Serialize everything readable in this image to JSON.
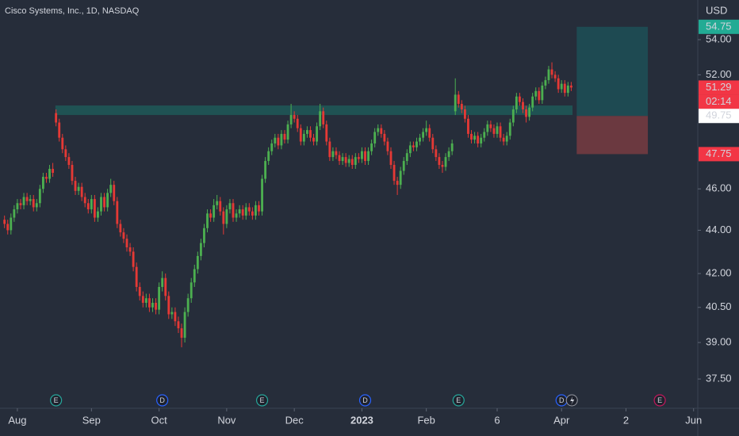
{
  "chart_data": {
    "type": "candlestick",
    "title": "Cisco Systems, Inc., 1D, NASDAQ",
    "currency": "USD",
    "log_scale": true,
    "up_color": "#4caf50",
    "down_color": "#e53935",
    "background": "#262d3a",
    "ylim": [
      36.34,
      56.35
    ],
    "yticks": [
      {
        "value": 54,
        "label": "54.00"
      },
      {
        "value": 52,
        "label": "52.00"
      },
      {
        "value": 46,
        "label": "46.00"
      },
      {
        "value": 44,
        "label": "44.00"
      },
      {
        "value": 42,
        "label": "42.00"
      },
      {
        "value": 40.5,
        "label": "40.50"
      },
      {
        "value": 39,
        "label": "39.00"
      },
      {
        "value": 37.5,
        "label": "37.50"
      }
    ],
    "xlim": [
      -1.4,
      215.3
    ],
    "xticks": [
      {
        "value": 4,
        "label": "Aug"
      },
      {
        "value": 27,
        "label": "Sep"
      },
      {
        "value": 48,
        "label": "Oct"
      },
      {
        "value": 69,
        "label": "Nov"
      },
      {
        "value": 90,
        "label": "Dec"
      },
      {
        "value": 111,
        "label": "2023"
      },
      {
        "value": 131,
        "label": "Feb"
      },
      {
        "value": 153,
        "label": "6"
      },
      {
        "value": 173,
        "label": "Apr"
      },
      {
        "value": 193,
        "label": "2"
      },
      {
        "value": 214,
        "label": "Jun"
      }
    ],
    "candles": [
      [
        44.5,
        44.7,
        44.1,
        44.3
      ],
      [
        44.3,
        44.5,
        43.8,
        44.0
      ],
      [
        44.0,
        44.8,
        43.8,
        44.6
      ],
      [
        44.6,
        45.2,
        44.4,
        45.0
      ],
      [
        45.0,
        45.5,
        44.8,
        45.3
      ],
      [
        45.3,
        45.5,
        45.0,
        45.2
      ],
      [
        45.2,
        45.8,
        45.0,
        45.6
      ],
      [
        45.6,
        45.8,
        45.2,
        45.4
      ],
      [
        45.4,
        45.7,
        45.2,
        45.5
      ],
      [
        45.5,
        45.7,
        44.9,
        45.1
      ],
      [
        45.1,
        45.5,
        44.9,
        45.3
      ],
      [
        45.3,
        46.2,
        45.1,
        46.0
      ],
      [
        46.0,
        46.8,
        45.8,
        46.6
      ],
      [
        46.6,
        46.8,
        46.3,
        46.5
      ],
      [
        46.5,
        47.2,
        46.3,
        47.0
      ],
      [
        47.0,
        47.3,
        46.6,
        46.8
      ],
      [
        49.9,
        50.1,
        49.2,
        49.4
      ],
      [
        49.4,
        49.6,
        48.4,
        48.6
      ],
      [
        48.6,
        48.8,
        47.8,
        48.0
      ],
      [
        48.0,
        48.2,
        47.4,
        47.6
      ],
      [
        47.6,
        47.8,
        47.0,
        47.2
      ],
      [
        47.2,
        47.4,
        46.2,
        46.4
      ],
      [
        46.4,
        46.6,
        45.7,
        45.9
      ],
      [
        45.9,
        46.3,
        45.7,
        46.1
      ],
      [
        46.1,
        46.3,
        45.4,
        45.6
      ],
      [
        45.6,
        45.8,
        45.1,
        45.3
      ],
      [
        45.3,
        45.5,
        44.8,
        45.0
      ],
      [
        45.0,
        45.7,
        44.8,
        45.5
      ],
      [
        45.5,
        45.7,
        44.4,
        44.6
      ],
      [
        44.6,
        45.1,
        44.4,
        44.9
      ],
      [
        44.9,
        45.8,
        44.7,
        45.6
      ],
      [
        45.6,
        45.8,
        44.9,
        45.1
      ],
      [
        45.1,
        46.0,
        44.9,
        45.8
      ],
      [
        45.8,
        46.5,
        45.6,
        46.2
      ],
      [
        46.2,
        46.4,
        45.2,
        45.4
      ],
      [
        45.4,
        45.6,
        44.1,
        44.3
      ],
      [
        44.3,
        44.5,
        43.7,
        43.9
      ],
      [
        43.9,
        44.1,
        43.4,
        43.6
      ],
      [
        43.6,
        43.8,
        43.0,
        43.2
      ],
      [
        43.2,
        43.4,
        42.8,
        43.0
      ],
      [
        43.0,
        43.2,
        42.1,
        42.3
      ],
      [
        42.3,
        42.5,
        41.2,
        41.4
      ],
      [
        41.4,
        41.6,
        40.8,
        41.0
      ],
      [
        41.0,
        41.2,
        40.5,
        40.7
      ],
      [
        40.7,
        41.1,
        40.5,
        40.9
      ],
      [
        40.9,
        41.1,
        40.3,
        40.5
      ],
      [
        40.5,
        40.9,
        40.3,
        40.7
      ],
      [
        40.7,
        40.9,
        40.2,
        40.4
      ],
      [
        40.4,
        41.6,
        40.2,
        41.4
      ],
      [
        41.4,
        42.1,
        41.2,
        41.8
      ],
      [
        41.8,
        42.0,
        40.8,
        41.0
      ],
      [
        41.0,
        41.2,
        40.0,
        40.2
      ],
      [
        40.2,
        40.5,
        40.0,
        40.3
      ],
      [
        40.3,
        40.5,
        39.7,
        39.9
      ],
      [
        39.9,
        40.1,
        39.4,
        39.6
      ],
      [
        39.6,
        39.8,
        38.8,
        39.2
      ],
      [
        39.2,
        40.5,
        39.0,
        40.3
      ],
      [
        40.3,
        41.1,
        40.1,
        40.9
      ],
      [
        40.9,
        41.8,
        40.7,
        41.6
      ],
      [
        41.6,
        42.4,
        41.4,
        42.2
      ],
      [
        42.2,
        43.0,
        42.0,
        42.8
      ],
      [
        42.8,
        43.6,
        42.6,
        43.4
      ],
      [
        43.4,
        44.3,
        43.2,
        44.1
      ],
      [
        44.1,
        45.0,
        43.9,
        44.8
      ],
      [
        44.8,
        45.0,
        44.4,
        44.6
      ],
      [
        44.6,
        45.5,
        44.4,
        45.2
      ],
      [
        45.2,
        45.7,
        45.0,
        45.4
      ],
      [
        45.4,
        45.6,
        44.7,
        44.9
      ],
      [
        44.9,
        45.1,
        43.8,
        44.3
      ],
      [
        44.3,
        45.2,
        44.1,
        45.0
      ],
      [
        45.0,
        45.5,
        44.8,
        45.3
      ],
      [
        45.3,
        45.5,
        44.4,
        44.6
      ],
      [
        44.6,
        45.0,
        44.4,
        44.8
      ],
      [
        44.8,
        45.2,
        44.6,
        45.0
      ],
      [
        45.0,
        45.2,
        44.5,
        44.7
      ],
      [
        44.7,
        45.3,
        44.5,
        45.1
      ],
      [
        45.1,
        45.3,
        44.7,
        44.9
      ],
      [
        44.9,
        45.1,
        44.5,
        44.7
      ],
      [
        44.7,
        45.4,
        44.5,
        45.2
      ],
      [
        45.2,
        45.4,
        44.7,
        44.9
      ],
      [
        44.9,
        46.7,
        44.7,
        46.5
      ],
      [
        46.5,
        47.6,
        46.3,
        47.4
      ],
      [
        47.4,
        48.1,
        47.2,
        47.9
      ],
      [
        47.9,
        48.5,
        47.7,
        48.3
      ],
      [
        48.3,
        48.8,
        48.1,
        48.6
      ],
      [
        48.6,
        48.8,
        48.0,
        48.2
      ],
      [
        48.2,
        49.0,
        48.0,
        48.8
      ],
      [
        48.8,
        49.0,
        48.3,
        48.5
      ],
      [
        48.5,
        49.5,
        48.3,
        49.3
      ],
      [
        49.3,
        50.4,
        49.1,
        49.8
      ],
      [
        49.8,
        50.0,
        49.4,
        49.6
      ],
      [
        49.6,
        49.8,
        48.9,
        49.1
      ],
      [
        49.1,
        49.3,
        48.2,
        48.4
      ],
      [
        48.4,
        49.0,
        48.2,
        48.8
      ],
      [
        48.8,
        49.2,
        48.6,
        49.0
      ],
      [
        49.0,
        49.2,
        48.4,
        48.6
      ],
      [
        48.6,
        48.8,
        48.2,
        48.4
      ],
      [
        48.4,
        49.4,
        48.2,
        49.2
      ],
      [
        49.2,
        50.4,
        49.0,
        50.0
      ],
      [
        50.0,
        50.2,
        49.1,
        49.3
      ],
      [
        49.3,
        49.5,
        48.2,
        48.4
      ],
      [
        48.4,
        48.6,
        47.4,
        47.6
      ],
      [
        47.6,
        48.1,
        47.4,
        47.9
      ],
      [
        47.9,
        48.1,
        47.5,
        47.7
      ],
      [
        47.7,
        47.9,
        47.2,
        47.4
      ],
      [
        47.4,
        47.8,
        47.2,
        47.6
      ],
      [
        47.6,
        47.8,
        47.1,
        47.3
      ],
      [
        47.3,
        47.7,
        47.1,
        47.5
      ],
      [
        47.5,
        47.7,
        47.0,
        47.2
      ],
      [
        47.2,
        47.8,
        47.0,
        47.6
      ],
      [
        47.6,
        47.8,
        47.3,
        47.5
      ],
      [
        47.5,
        48.1,
        47.3,
        47.9
      ],
      [
        47.9,
        48.1,
        47.2,
        47.4
      ],
      [
        47.4,
        48.1,
        47.2,
        47.9
      ],
      [
        47.9,
        48.5,
        47.7,
        48.3
      ],
      [
        48.3,
        49.1,
        48.1,
        48.9
      ],
      [
        48.9,
        49.3,
        48.7,
        49.1
      ],
      [
        49.1,
        49.3,
        48.6,
        48.8
      ],
      [
        48.8,
        49.0,
        48.2,
        48.4
      ],
      [
        48.4,
        48.6,
        47.7,
        47.9
      ],
      [
        47.9,
        48.1,
        47.0,
        47.2
      ],
      [
        47.2,
        47.4,
        46.2,
        46.4
      ],
      [
        46.4,
        46.6,
        45.7,
        46.2
      ],
      [
        46.2,
        47.1,
        46.0,
        46.9
      ],
      [
        46.9,
        47.6,
        46.7,
        47.4
      ],
      [
        47.4,
        48.0,
        47.2,
        47.8
      ],
      [
        47.8,
        48.4,
        47.6,
        48.2
      ],
      [
        48.2,
        48.4,
        47.9,
        48.1
      ],
      [
        48.1,
        48.6,
        47.9,
        48.4
      ],
      [
        48.4,
        48.8,
        48.2,
        48.6
      ],
      [
        48.6,
        49.1,
        48.4,
        48.9
      ],
      [
        48.9,
        49.5,
        48.7,
        49.1
      ],
      [
        49.1,
        49.3,
        48.4,
        48.6
      ],
      [
        48.6,
        48.8,
        47.8,
        48.0
      ],
      [
        48.0,
        48.2,
        47.4,
        47.6
      ],
      [
        47.6,
        47.8,
        47.0,
        47.2
      ],
      [
        47.2,
        47.4,
        46.8,
        47.1
      ],
      [
        47.1,
        47.8,
        46.9,
        47.6
      ],
      [
        47.6,
        48.1,
        47.4,
        47.9
      ],
      [
        47.9,
        48.5,
        47.7,
        48.3
      ],
      [
        50.0,
        51.8,
        49.8,
        50.9
      ],
      [
        50.9,
        51.1,
        50.2,
        50.4
      ],
      [
        50.4,
        50.6,
        49.9,
        50.1
      ],
      [
        50.1,
        50.3,
        49.4,
        49.6
      ],
      [
        49.6,
        49.8,
        48.6,
        48.8
      ],
      [
        48.8,
        49.0,
        48.3,
        48.5
      ],
      [
        48.5,
        48.9,
        48.3,
        48.7
      ],
      [
        48.7,
        48.9,
        48.1,
        48.3
      ],
      [
        48.3,
        48.8,
        48.1,
        48.6
      ],
      [
        48.6,
        49.1,
        48.4,
        48.9
      ],
      [
        48.9,
        49.5,
        48.7,
        49.3
      ],
      [
        49.3,
        49.5,
        48.9,
        49.1
      ],
      [
        49.1,
        49.3,
        48.6,
        48.8
      ],
      [
        48.8,
        49.4,
        48.6,
        49.2
      ],
      [
        49.2,
        49.4,
        48.4,
        48.6
      ],
      [
        48.6,
        48.8,
        48.2,
        48.4
      ],
      [
        48.4,
        48.9,
        48.2,
        48.7
      ],
      [
        48.7,
        49.6,
        48.5,
        49.4
      ],
      [
        49.4,
        50.3,
        49.2,
        50.1
      ],
      [
        50.1,
        51.0,
        49.9,
        50.8
      ],
      [
        50.8,
        51.0,
        50.3,
        50.5
      ],
      [
        50.5,
        50.7,
        49.9,
        50.1
      ],
      [
        50.1,
        50.3,
        49.4,
        49.7
      ],
      [
        49.7,
        50.4,
        49.5,
        50.2
      ],
      [
        50.2,
        51.0,
        50.0,
        50.8
      ],
      [
        50.8,
        51.3,
        50.6,
        51.1
      ],
      [
        51.1,
        51.3,
        50.4,
        50.6
      ],
      [
        50.6,
        51.6,
        50.4,
        51.4
      ],
      [
        51.4,
        51.9,
        51.2,
        51.7
      ],
      [
        51.7,
        52.5,
        51.5,
        52.3
      ],
      [
        52.3,
        52.7,
        51.8,
        52.0
      ],
      [
        52.0,
        52.2,
        51.6,
        51.8
      ],
      [
        51.8,
        52.0,
        51.0,
        51.2
      ],
      [
        51.2,
        51.7,
        51.0,
        51.5
      ],
      [
        51.5,
        51.7,
        50.8,
        51.0
      ],
      [
        51.0,
        51.6,
        50.8,
        51.4
      ],
      [
        51.4,
        51.6,
        51.1,
        51.29
      ]
    ],
    "last_price": 51.29,
    "countdown": "02:14",
    "zone": {
      "top": 50.31,
      "bottom": 49.8,
      "x": [
        15.8,
        176.4
      ],
      "color": "#1f5253"
    },
    "position": {
      "target": 54.75,
      "entry": 49.75,
      "stop": 47.75,
      "x": [
        177.7,
        199.8
      ],
      "profit_color": "#1e4a52",
      "loss_color": "#6b3940"
    },
    "events": [
      {
        "label": "E",
        "x": 16,
        "color": "#26a69a"
      },
      {
        "label": "D",
        "x": 49,
        "color": "#2962ff"
      },
      {
        "label": "E",
        "x": 80,
        "color": "#26a69a"
      },
      {
        "label": "D",
        "x": 112,
        "color": "#2962ff"
      },
      {
        "label": "E",
        "x": 141,
        "color": "#26a69a"
      },
      {
        "label": "D",
        "x": 173,
        "color": "#2962ff"
      },
      {
        "label": "E",
        "x": 203.5,
        "color": "#c2185b"
      }
    ]
  }
}
